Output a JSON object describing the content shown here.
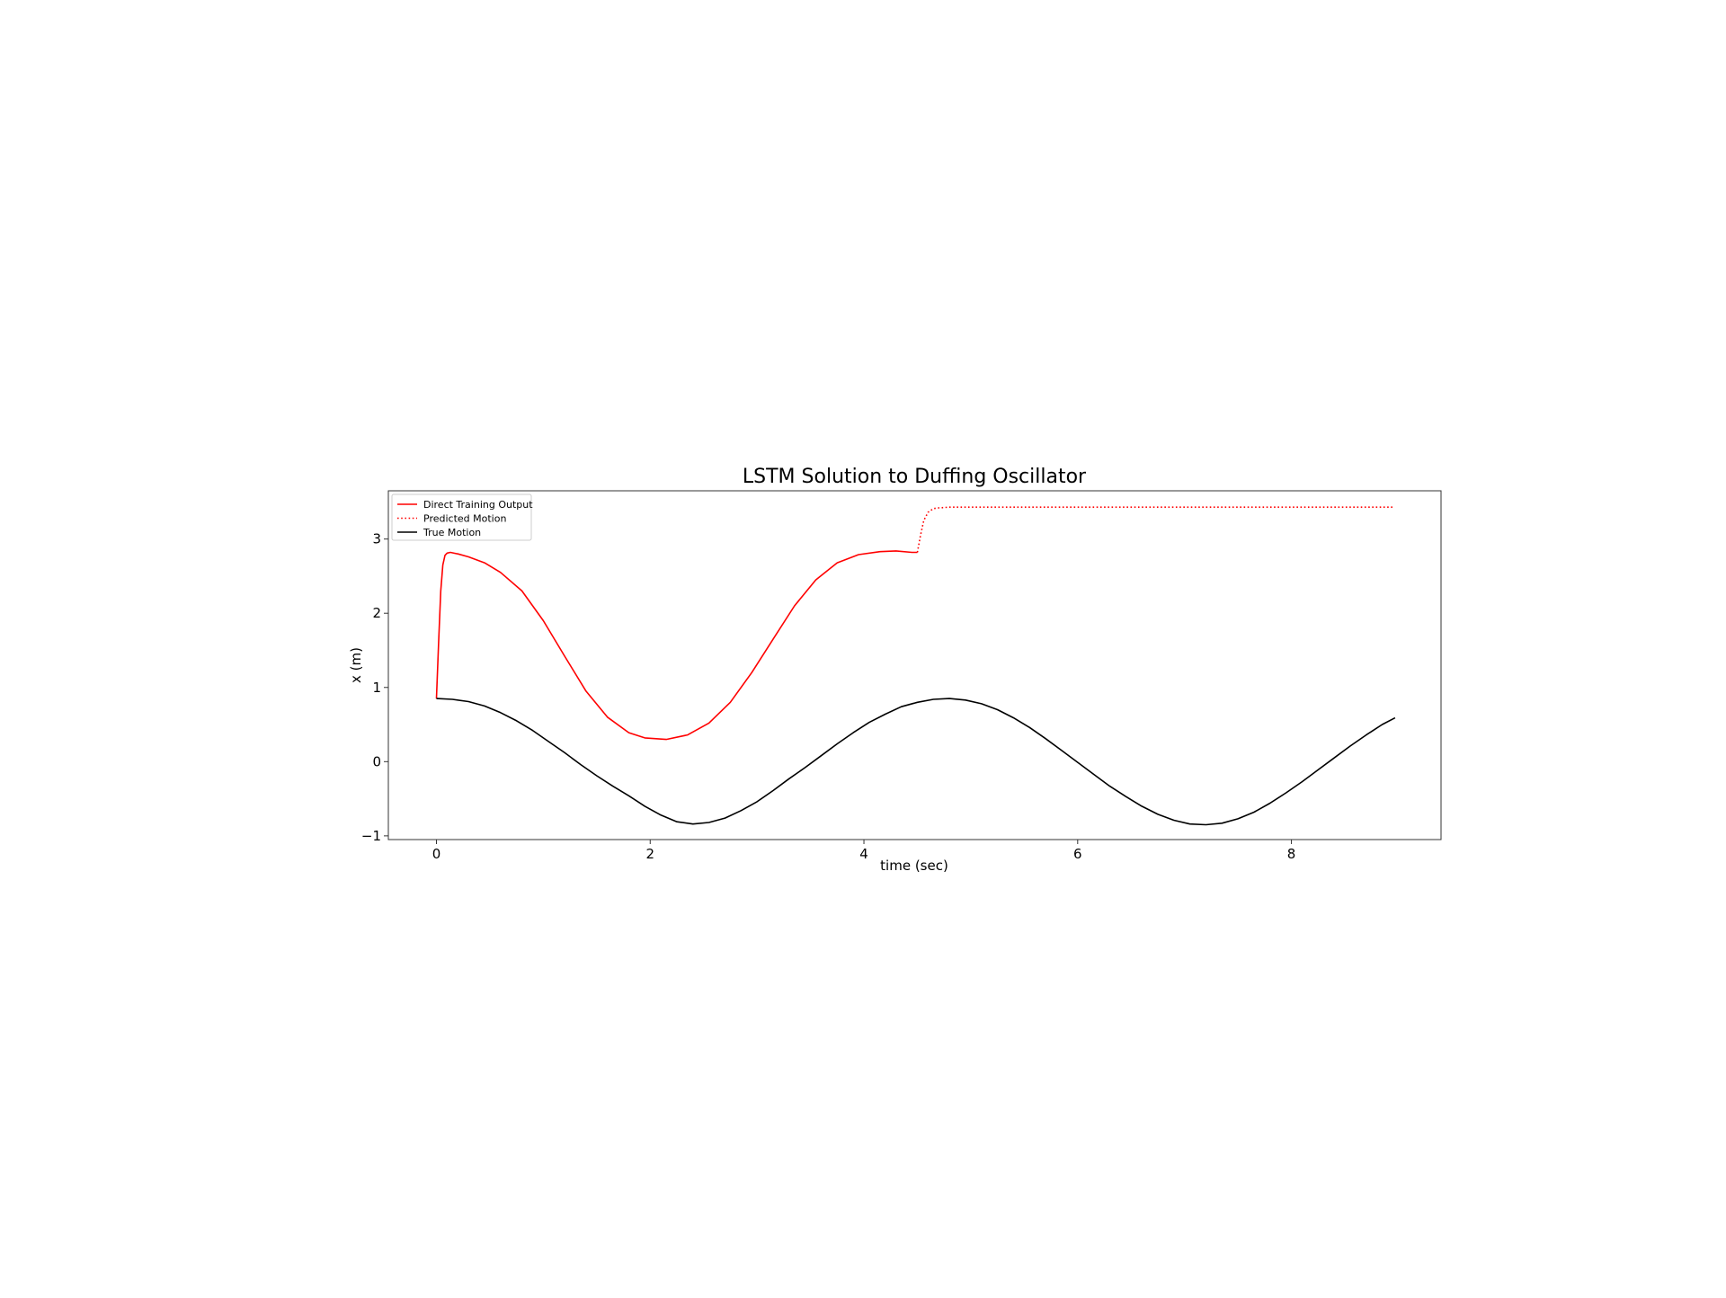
{
  "chart_data": {
    "type": "line",
    "title": "LSTM Solution to Duffing Oscillator",
    "xlabel": "time (sec)",
    "ylabel": "x (m)",
    "xlim": [
      -0.45,
      9.4
    ],
    "ylim": [
      -1.05,
      3.65
    ],
    "xticks": [
      0,
      2,
      4,
      6,
      8
    ],
    "xtick_labels": [
      "0",
      "2",
      "4",
      "6",
      "8"
    ],
    "yticks": [
      -1,
      0,
      1,
      2,
      3
    ],
    "ytick_labels": [
      "−1",
      "0",
      "1",
      "2",
      "3"
    ],
    "grid": false,
    "legend_position": "top-left",
    "series": [
      {
        "name": "Direct Training Output",
        "color": "#ff0000",
        "style": "solid",
        "x": [
          0,
          0.02,
          0.04,
          0.06,
          0.08,
          0.1,
          0.13,
          0.2,
          0.3,
          0.45,
          0.6,
          0.8,
          1.0,
          1.2,
          1.4,
          1.6,
          1.8,
          1.95,
          2.15,
          2.35,
          2.55,
          2.75,
          2.95,
          3.15,
          3.35,
          3.55,
          3.75,
          3.95,
          4.15,
          4.3,
          4.45,
          4.5
        ],
        "y": [
          0.85,
          1.6,
          2.3,
          2.65,
          2.78,
          2.81,
          2.82,
          2.8,
          2.76,
          2.68,
          2.55,
          2.3,
          1.9,
          1.42,
          0.95,
          0.6,
          0.39,
          0.32,
          0.3,
          0.36,
          0.52,
          0.8,
          1.2,
          1.65,
          2.1,
          2.45,
          2.68,
          2.79,
          2.83,
          2.84,
          2.82,
          2.82
        ]
      },
      {
        "name": "Predicted Motion",
        "color": "#ff0000",
        "style": "dotted",
        "x": [
          4.5,
          4.53,
          4.56,
          4.6,
          4.65,
          4.7,
          4.8,
          5.0,
          6.0,
          7.0,
          8.0,
          8.95
        ],
        "y": [
          2.82,
          3.05,
          3.25,
          3.36,
          3.41,
          3.42,
          3.43,
          3.43,
          3.43,
          3.43,
          3.43,
          3.43
        ]
      },
      {
        "name": "True Motion",
        "color": "#000000",
        "style": "solid",
        "x": [
          0,
          0.15,
          0.3,
          0.45,
          0.6,
          0.75,
          0.9,
          1.05,
          1.2,
          1.35,
          1.5,
          1.65,
          1.8,
          1.95,
          2.1,
          2.25,
          2.4,
          2.55,
          2.7,
          2.85,
          3.0,
          3.15,
          3.3,
          3.45,
          3.6,
          3.75,
          3.9,
          4.05,
          4.2,
          4.35,
          4.5,
          4.65,
          4.8,
          4.95,
          5.1,
          5.25,
          5.4,
          5.55,
          5.7,
          5.85,
          6.0,
          6.15,
          6.3,
          6.45,
          6.6,
          6.75,
          6.9,
          7.05,
          7.2,
          7.35,
          7.5,
          7.65,
          7.8,
          7.95,
          8.1,
          8.25,
          8.4,
          8.55,
          8.7,
          8.85,
          8.97
        ],
        "y": [
          0.85,
          0.84,
          0.81,
          0.75,
          0.66,
          0.55,
          0.42,
          0.27,
          0.12,
          -0.04,
          -0.19,
          -0.33,
          -0.46,
          -0.6,
          -0.72,
          -0.81,
          -0.84,
          -0.82,
          -0.76,
          -0.66,
          -0.54,
          -0.39,
          -0.23,
          -0.08,
          0.08,
          0.24,
          0.39,
          0.53,
          0.64,
          0.74,
          0.8,
          0.84,
          0.85,
          0.83,
          0.78,
          0.7,
          0.59,
          0.46,
          0.31,
          0.15,
          -0.01,
          -0.17,
          -0.33,
          -0.47,
          -0.6,
          -0.71,
          -0.79,
          -0.84,
          -0.85,
          -0.83,
          -0.77,
          -0.68,
          -0.56,
          -0.42,
          -0.27,
          -0.11,
          0.05,
          0.21,
          0.36,
          0.5,
          0.59
        ]
      }
    ]
  }
}
